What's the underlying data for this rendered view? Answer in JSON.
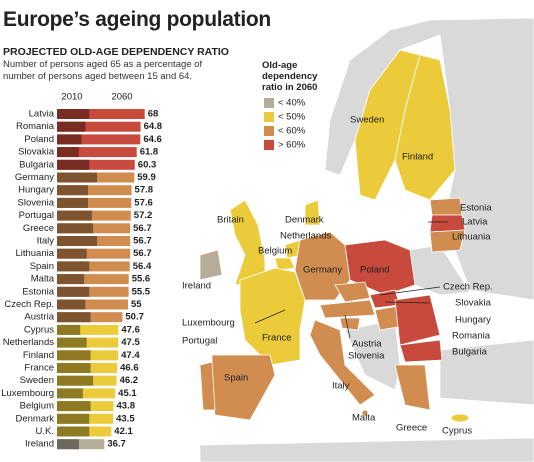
{
  "chart_data": {
    "type": "bar",
    "title": "Europe’s ageing population",
    "subtitle": "PROJECTED OLD-AGE DEPENDENCY RATIO",
    "description": "Number of persons aged 65 as a percentage of number of persons aged between 15 and 64.",
    "categories": [
      "Latvia",
      "Romania",
      "Poland",
      "Slovakia",
      "Bulgaria",
      "Germany",
      "Hungary",
      "Slovenia",
      "Portugal",
      "Greece",
      "Italy",
      "Lithuania",
      "Spain",
      "Malta",
      "Estonia",
      "Czech Rep.",
      "Austria",
      "Cyprus",
      "Netherlands",
      "Finland",
      "France",
      "Sweden",
      "Luxembourg",
      "Belgium",
      "Denmark",
      "U.K.",
      "Ireland"
    ],
    "series": [
      {
        "name": "2010",
        "values": [
          25,
          22,
          19,
          17,
          25,
          31,
          24,
          24,
          27,
          28,
          31,
          23,
          25,
          21,
          25,
          22,
          26,
          18,
          23,
          26,
          26,
          28,
          20,
          26,
          25,
          25,
          17
        ]
      },
      {
        "name": "2060",
        "values": [
          68,
          64.8,
          64.6,
          61.8,
          60.3,
          59.9,
          57.8,
          57.6,
          57.2,
          56.7,
          56.7,
          56.7,
          56.4,
          55.6,
          55.5,
          55,
          50.7,
          47.6,
          47.5,
          47.4,
          46.6,
          46.2,
          45.1,
          43.8,
          43.5,
          42.1,
          36.7
        ]
      }
    ],
    "legend": {
      "title": "Old-age dependency ratio in 2060",
      "items": [
        {
          "value": 40,
          "label": "< 40%",
          "color": "#b5ad97"
        },
        {
          "value": 50,
          "label": "< 50%",
          "color": "#ebcb3a"
        },
        {
          "value": 60,
          "label": "< 60%",
          "color": "#d18c4f"
        },
        {
          "value": 60,
          "label": "> 60%",
          "color": "#c84a3c"
        }
      ]
    }
  },
  "map_labels": [
    "Sweden",
    "Finland",
    "Estonia",
    "Latvia",
    "Lithuania",
    "Denmark",
    "Britain",
    "Netherlands",
    "Belgium",
    "Ireland",
    "Germany",
    "Poland",
    "Czech Rep.",
    "Slovakia",
    "Hungary",
    "Luxembourg",
    "Romania",
    "Austria",
    "Slovenia",
    "Bulgaria",
    "Portugal",
    "France",
    "Spain",
    "Italy",
    "Malta",
    "Greece",
    "Cyprus"
  ]
}
